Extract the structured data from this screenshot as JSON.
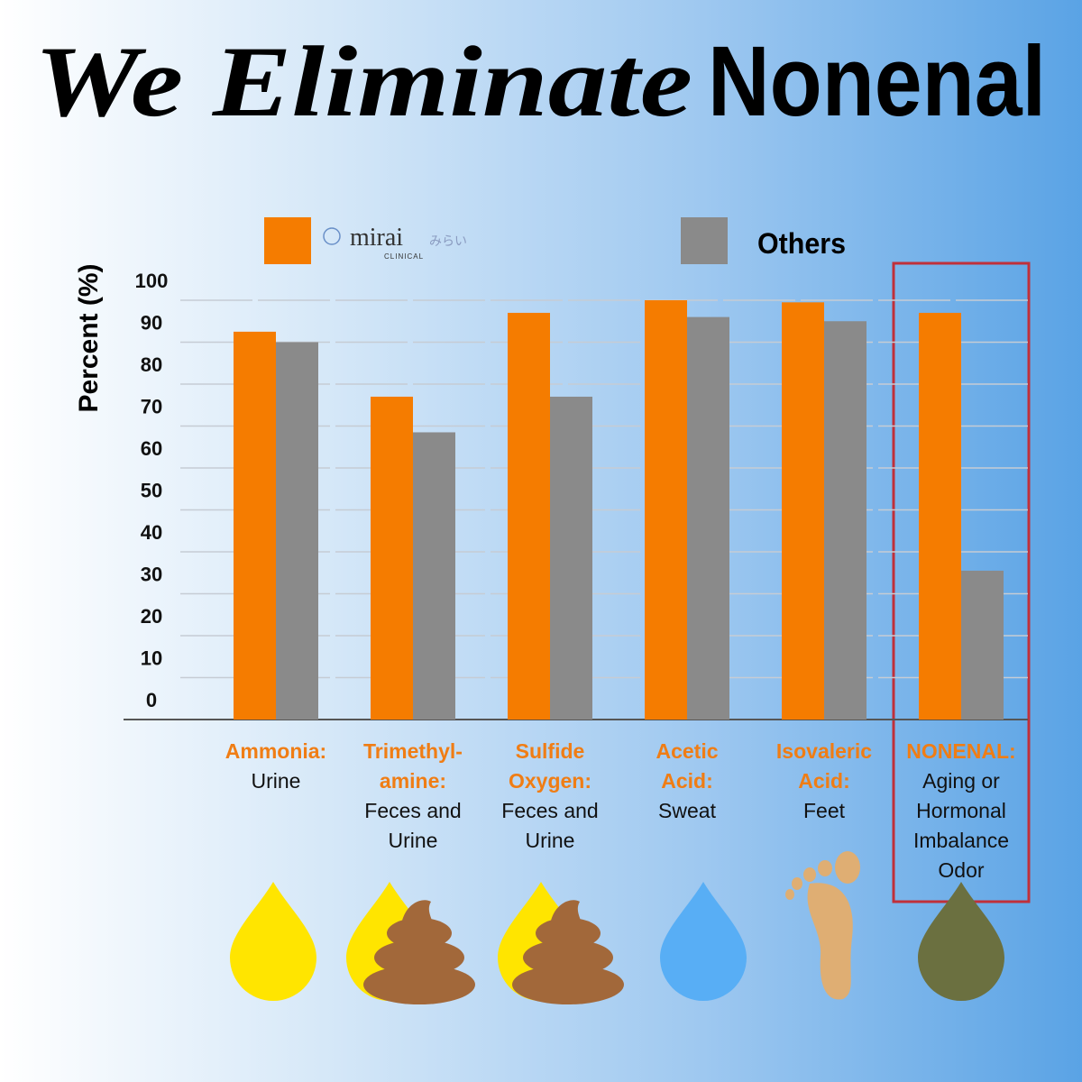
{
  "chart_data": {
    "type": "bar",
    "title_part1": "We Eliminate",
    "title_part2": "Nonenal",
    "ylabel": "Percent (%)",
    "categories": [
      "Ammonia:",
      "Trimethyl-\namine:",
      "Sulfide\nOxygen:",
      "Acetic\nAcid:",
      "Isovaleric\nAcid:",
      "NONENAL:"
    ],
    "sources": [
      "Urine",
      "Feces and\nUrine",
      "Feces and\nUrine",
      "Sweat",
      "Feet",
      "Aging or\nHormonal\nImbalance\nOdor"
    ],
    "series": [
      {
        "name": "mirai",
        "color": "#f57c00",
        "values": [
          92.5,
          77,
          97,
          100,
          99.5,
          97
        ]
      },
      {
        "name": "Others",
        "color": "#8a8a8a",
        "values": [
          90,
          68.5,
          77,
          96,
          95,
          35.5
        ]
      }
    ],
    "logo_kana": "みらい",
    "logo_sub": "CLINICAL",
    "ylim": [
      0,
      100
    ],
    "yticks": [
      0,
      10,
      20,
      30,
      40,
      50,
      60,
      70,
      80,
      90,
      100
    ],
    "grid": true
  }
}
